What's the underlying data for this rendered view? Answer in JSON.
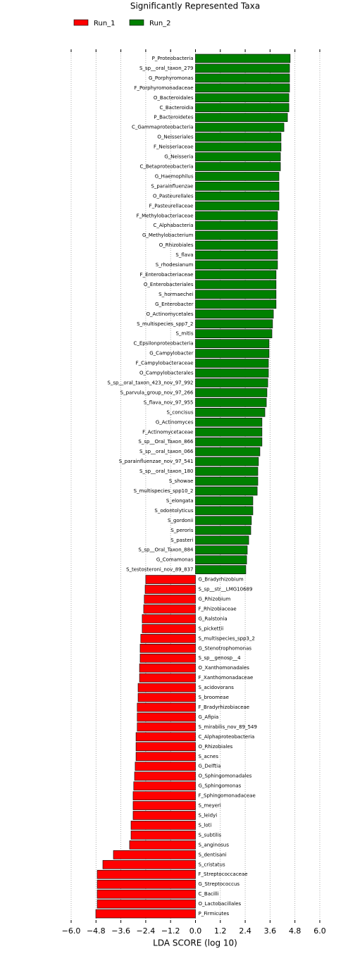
{
  "chart_data": {
    "type": "barh",
    "title": "Significantly Represented Taxa",
    "xlabel": "LDA SCORE (log 10)",
    "categories": [
      "P_Proteobacteria",
      "S_sp__oral_taxon_279",
      "G_Porphyromonas",
      "F_Porphyromonadaceae",
      "O_Bacteroidales",
      "C_Bacteroidia",
      "P_Bacteroidetes",
      "C_Gammaproteobacteria",
      "O_Neisseriales",
      "F_Neisseriaceae",
      "G_Neisseria",
      "C_Betaproteobacteria",
      "G_Haemophilus",
      "S_parainfluenzae",
      "O_Pasteurellales",
      "F_Pasteurellaceae",
      "F_Methylobacteriaceae",
      "C_Alphabacteria",
      "G_Methylobacterium",
      "O_Rhizobiales",
      "S_flava",
      "S_rhodesianum",
      "F_Enterobacteriaceae",
      "O_Enterobacteriales",
      "S_hormaechei",
      "G_Enterobacter",
      "O_Actinomycetales",
      "S_multispecies_spp7_2",
      "S_mitis",
      "C_Epsilonproteobacteria",
      "G_Campylobacter",
      "F_Campylobacteraceae",
      "O_Campylobacterales",
      "S_sp__oral_taxon_423_nov_97_992",
      "S_parvula_group_nov_97_266",
      "S_flava_nov_97_955",
      "S_concisus",
      "G_Actinomyces",
      "F_Actinomycetaceae",
      "S_sp__Oral_Taxon_866",
      "S_sp__oral_taxon_066",
      "S_parainfluenzae_nov_97_541",
      "S_sp__oral_taxon_180",
      "S_showae",
      "S_multispecies_spp10_2",
      "S_elongata",
      "S_odontolyticus",
      "S_gordonii",
      "S_peroris",
      "S_pasteri",
      "S_sp__Oral_Taxon_884",
      "G_Comamonas",
      "S_testosteroni_nov_89_837",
      "G_Bradyrhizobium",
      "S_sp__str__LMG10689",
      "G_Rhizobium",
      "F_Rhizobiaceae",
      "G_Ralstonia",
      "S_pickettii",
      "S_multispecies_spp3_2",
      "G_Stenotrophomonas",
      "S_sp__genosp__4",
      "O_Xanthomonadales",
      "F_Xanthomonadaceae",
      "S_acidovorans",
      "S_broomeae",
      "F_Bradyrhizobiaceae",
      "G_Afipia",
      "S_mirabilis_nov_89_549",
      "C_Alphaproteobacteria",
      "O_Rhizobiales",
      "S_acnes",
      "G_Delftia",
      "O_Sphingomonadales",
      "G_Sphingomonas",
      "F_Sphingomonadaceae",
      "S_meyeri",
      "S_leidyi",
      "S_loti",
      "S_subtilis",
      "S_anginosus",
      "S_dentisani",
      "S_cristatus",
      "F_Streptococcaceae",
      "G_Streptococcus",
      "C_Bacilli",
      "O_Lactobacillales",
      "P_Firmicutes"
    ],
    "series": [
      {
        "name": "Run_1",
        "color": "#ff0000",
        "values": [
          null,
          null,
          null,
          null,
          null,
          null,
          null,
          null,
          null,
          null,
          null,
          null,
          null,
          null,
          null,
          null,
          null,
          null,
          null,
          null,
          null,
          null,
          null,
          null,
          null,
          null,
          null,
          null,
          null,
          null,
          null,
          null,
          null,
          null,
          null,
          null,
          null,
          null,
          null,
          null,
          null,
          null,
          null,
          null,
          null,
          null,
          null,
          null,
          null,
          null,
          null,
          null,
          null,
          -2.4,
          -2.43,
          -2.47,
          -2.5,
          -2.57,
          -2.57,
          -2.64,
          -2.67,
          -2.67,
          -2.7,
          -2.7,
          -2.77,
          -2.77,
          -2.81,
          -2.81,
          -2.81,
          -2.87,
          -2.87,
          -2.87,
          -2.91,
          -2.94,
          -2.98,
          -3.01,
          -3.01,
          -3.01,
          -3.11,
          -3.11,
          -3.18,
          -3.96,
          -4.47,
          -4.74,
          -4.74,
          -4.74,
          -4.74,
          -4.81
        ]
      },
      {
        "name": "Run_2",
        "color": "#008000",
        "values": [
          4.57,
          4.54,
          4.54,
          4.54,
          4.51,
          4.51,
          4.44,
          4.27,
          4.13,
          4.13,
          4.1,
          4.1,
          4.03,
          4.03,
          4.03,
          4.03,
          3.96,
          3.96,
          3.96,
          3.96,
          3.96,
          3.96,
          3.89,
          3.89,
          3.89,
          3.89,
          3.76,
          3.72,
          3.69,
          3.55,
          3.55,
          3.52,
          3.52,
          3.49,
          3.45,
          3.42,
          3.35,
          3.21,
          3.21,
          3.21,
          3.11,
          3.04,
          3.01,
          3.01,
          2.98,
          2.77,
          2.77,
          2.7,
          2.67,
          2.57,
          2.5,
          2.47,
          2.43,
          null,
          null,
          null,
          null,
          null,
          null,
          null,
          null,
          null,
          null,
          null,
          null,
          null,
          null,
          null,
          null,
          null,
          null,
          null,
          null,
          null,
          null,
          null,
          null,
          null,
          null,
          null,
          null,
          null,
          null,
          null,
          null,
          null,
          null,
          null
        ]
      }
    ],
    "xlim": [
      -6.0,
      6.0
    ],
    "xticks": [
      {
        "value": -6.0,
        "label": "−6.0"
      },
      {
        "value": -4.8,
        "label": "−4.8"
      },
      {
        "value": -3.6,
        "label": "−3.6"
      },
      {
        "value": -2.4,
        "label": "−2.4"
      },
      {
        "value": -1.2,
        "label": "−1.2"
      },
      {
        "value": 0.0,
        "label": "0.0"
      },
      {
        "value": 1.2,
        "label": "1.2"
      },
      {
        "value": 2.4,
        "label": "2.4"
      },
      {
        "value": 3.6,
        "label": "3.6"
      },
      {
        "value": 4.8,
        "label": "4.8"
      },
      {
        "value": 6.0,
        "label": "6.0"
      }
    ],
    "grid": true
  }
}
